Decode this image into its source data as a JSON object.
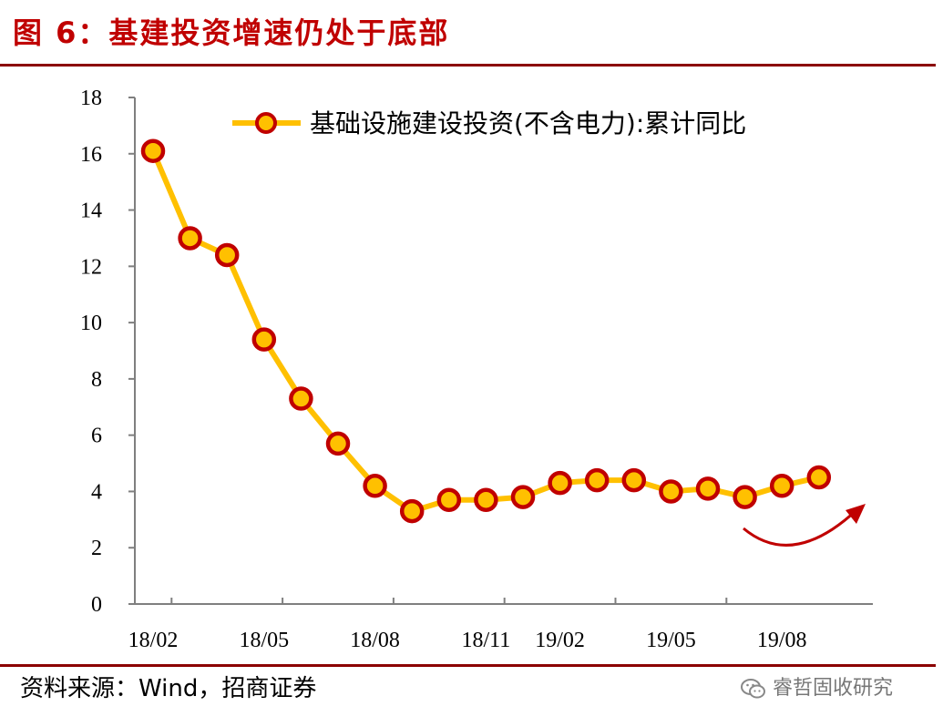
{
  "header": {
    "title": "图 6：基建投资增速仍处于底部"
  },
  "footer": {
    "source": "资料来源：Wind，招商证券",
    "watermark": "睿哲固收研究"
  },
  "colors": {
    "line": "#FFC000",
    "marker_fill": "#FFC000",
    "marker_edge": "#C00000",
    "rule": "#8B0000",
    "arrow": "#C00000"
  },
  "chart_data": {
    "type": "line",
    "title": "",
    "xlabel": "",
    "ylabel": "",
    "ylim": [
      0,
      18
    ],
    "yticks": [
      0,
      2,
      4,
      6,
      8,
      10,
      12,
      14,
      16,
      18
    ],
    "x": [
      "18/02",
      "18/03",
      "18/04",
      "18/05",
      "18/06",
      "18/07",
      "18/08",
      "18/09",
      "18/10",
      "18/11",
      "18/12",
      "19/02",
      "19/03",
      "19/04",
      "19/05",
      "19/06",
      "19/07",
      "19/08",
      "19/09"
    ],
    "xtick_labels": [
      "18/02",
      "18/05",
      "18/08",
      "18/11",
      "19/02",
      "19/05",
      "19/08"
    ],
    "series": [
      {
        "name": "基础设施建设投资(不含电力):累计同比",
        "values": [
          16.1,
          13.0,
          12.4,
          9.4,
          7.3,
          5.7,
          4.2,
          3.3,
          3.7,
          3.7,
          3.8,
          4.3,
          4.4,
          4.4,
          4.0,
          4.1,
          3.8,
          4.2,
          4.5
        ]
      }
    ],
    "legend": "top-right",
    "grid": false,
    "annotations": [
      "upward-arrow"
    ]
  }
}
